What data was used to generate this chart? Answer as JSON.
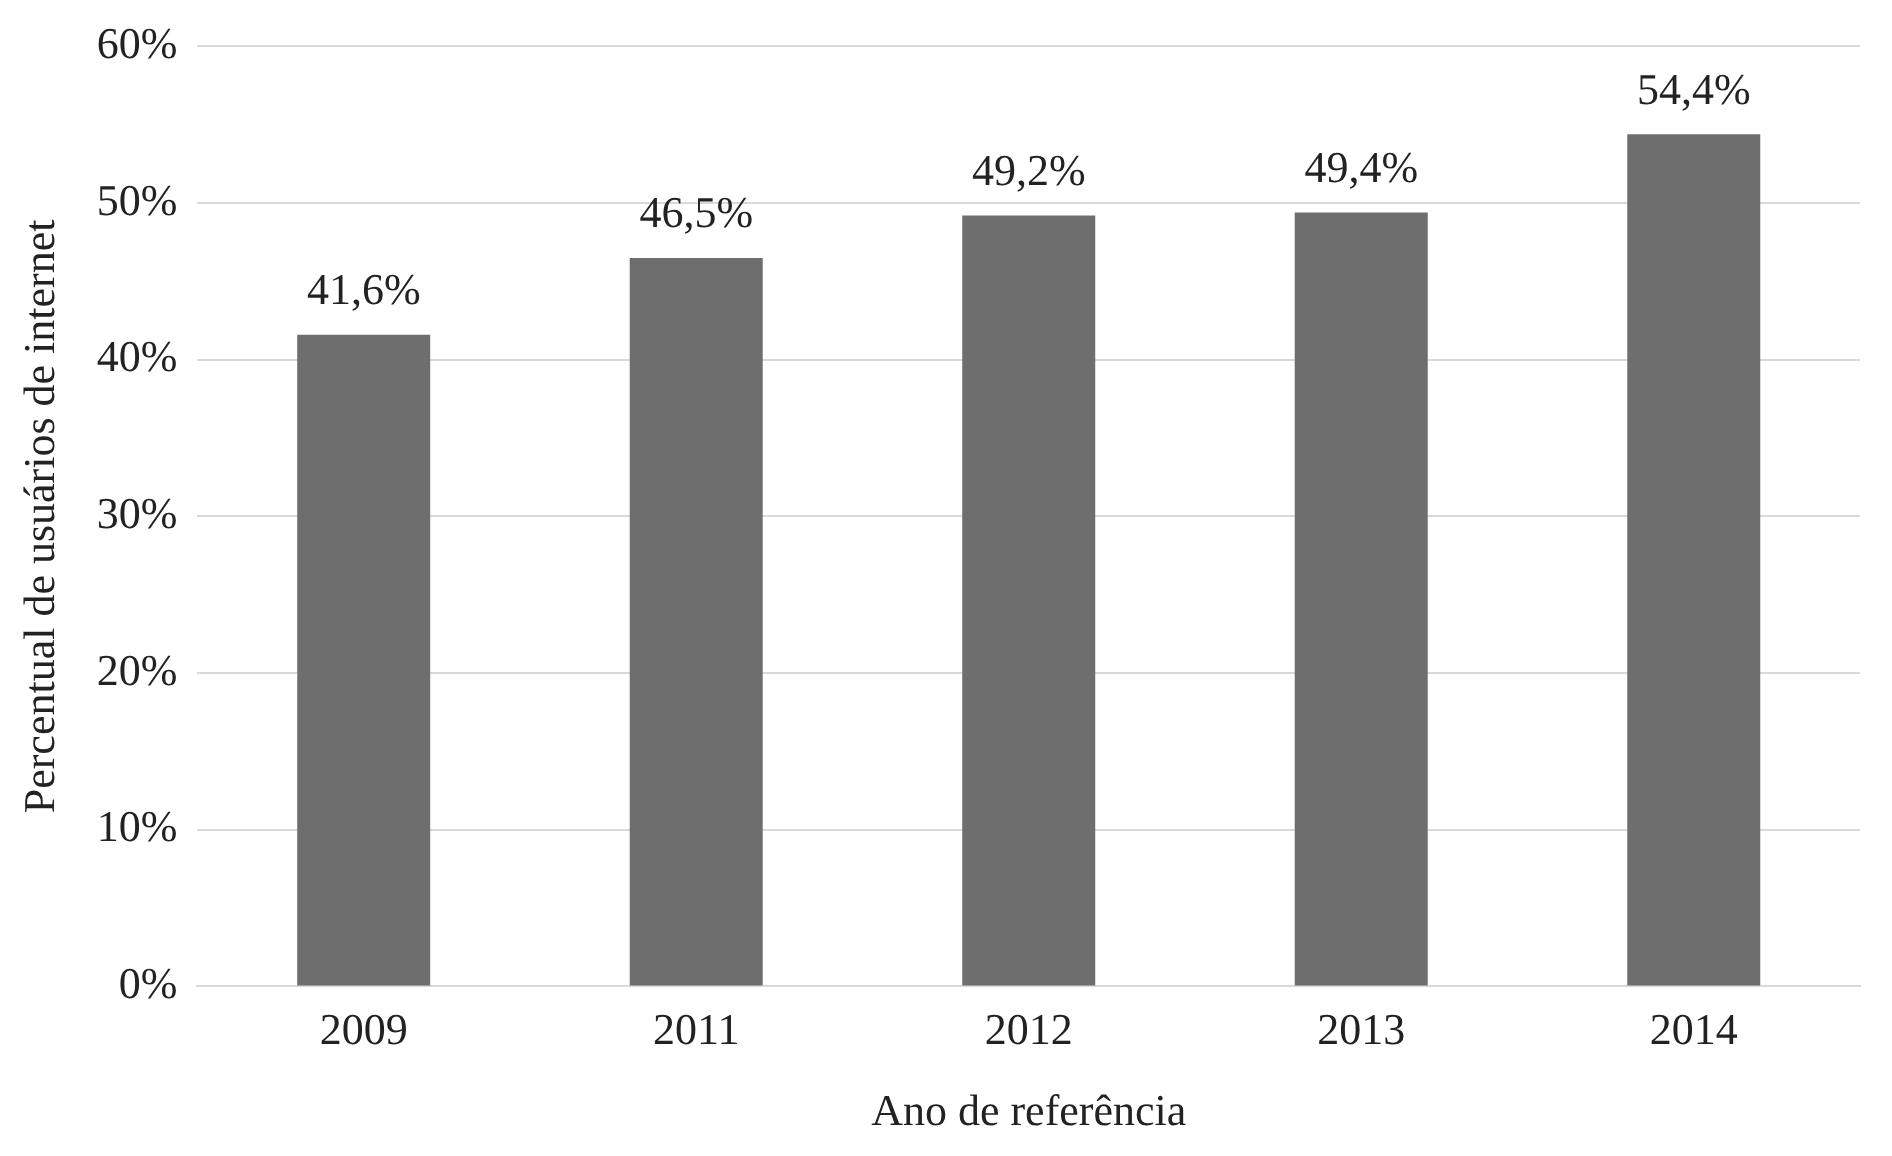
{
  "chart_data": {
    "type": "bar",
    "xlabel": "Ano de referência",
    "ylabel": "Percentual de usuários de internet",
    "categories": [
      "2009",
      "2011",
      "2012",
      "2013",
      "2014"
    ],
    "values": [
      41.6,
      46.5,
      49.2,
      49.4,
      54.4
    ],
    "value_labels": [
      "41,6%",
      "46,5%",
      "49,2%",
      "49,4%",
      "54,4%"
    ],
    "color": "#6e6e6e",
    "ylim": [
      0,
      60
    ],
    "yticks": [
      {
        "value": 0,
        "label": "0%"
      },
      {
        "value": 10,
        "label": "10%"
      },
      {
        "value": 20,
        "label": "20%"
      },
      {
        "value": 30,
        "label": "30%"
      },
      {
        "value": 40,
        "label": "40%"
      },
      {
        "value": 50,
        "label": "50%"
      },
      {
        "value": 60,
        "label": "60%"
      }
    ],
    "grid": "y",
    "legend": false
  }
}
